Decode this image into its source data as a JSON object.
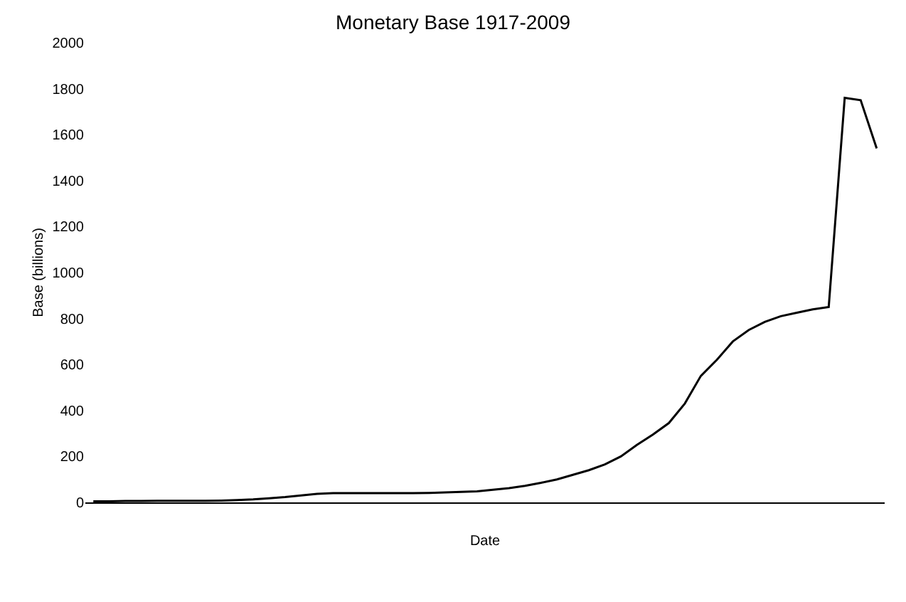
{
  "chart_data": {
    "type": "line",
    "title": "Monetary Base 1917-2009",
    "xlabel": "Date",
    "ylabel": "Base (billions)",
    "categories": [
      null,
      null,
      null,
      null,
      null,
      null,
      null,
      null,
      null,
      null,
      null,
      null,
      null,
      null,
      null,
      null,
      null,
      null,
      null,
      null,
      null,
      null,
      null,
      null,
      null,
      null,
      null,
      null,
      null,
      null,
      null,
      null,
      null,
      null,
      null,
      null,
      null,
      null,
      null,
      null,
      null,
      null,
      null,
      null,
      null,
      null,
      null,
      null,
      null,
      null
    ],
    "series": [
      {
        "color": "#000000",
        "values": [
          5,
          5,
          6,
          6,
          7,
          7,
          7,
          7,
          8,
          10,
          13,
          18,
          23,
          30,
          37,
          40,
          40,
          40,
          40,
          40,
          40,
          41,
          43,
          46,
          48,
          55,
          62,
          72,
          85,
          100,
          120,
          140,
          165,
          200,
          250,
          295,
          345,
          430,
          550,
          620,
          700,
          750,
          785,
          810,
          825,
          840,
          850,
          1760,
          1750,
          1540
        ]
      }
    ],
    "ylim": [
      0,
      2000
    ],
    "yticks": [
      0,
      200,
      400,
      600,
      800,
      1000,
      1200,
      1400,
      1600,
      1800,
      2000
    ],
    "tick_labels": "y",
    "grid": false,
    "marker": "none",
    "line_style": "solid"
  }
}
